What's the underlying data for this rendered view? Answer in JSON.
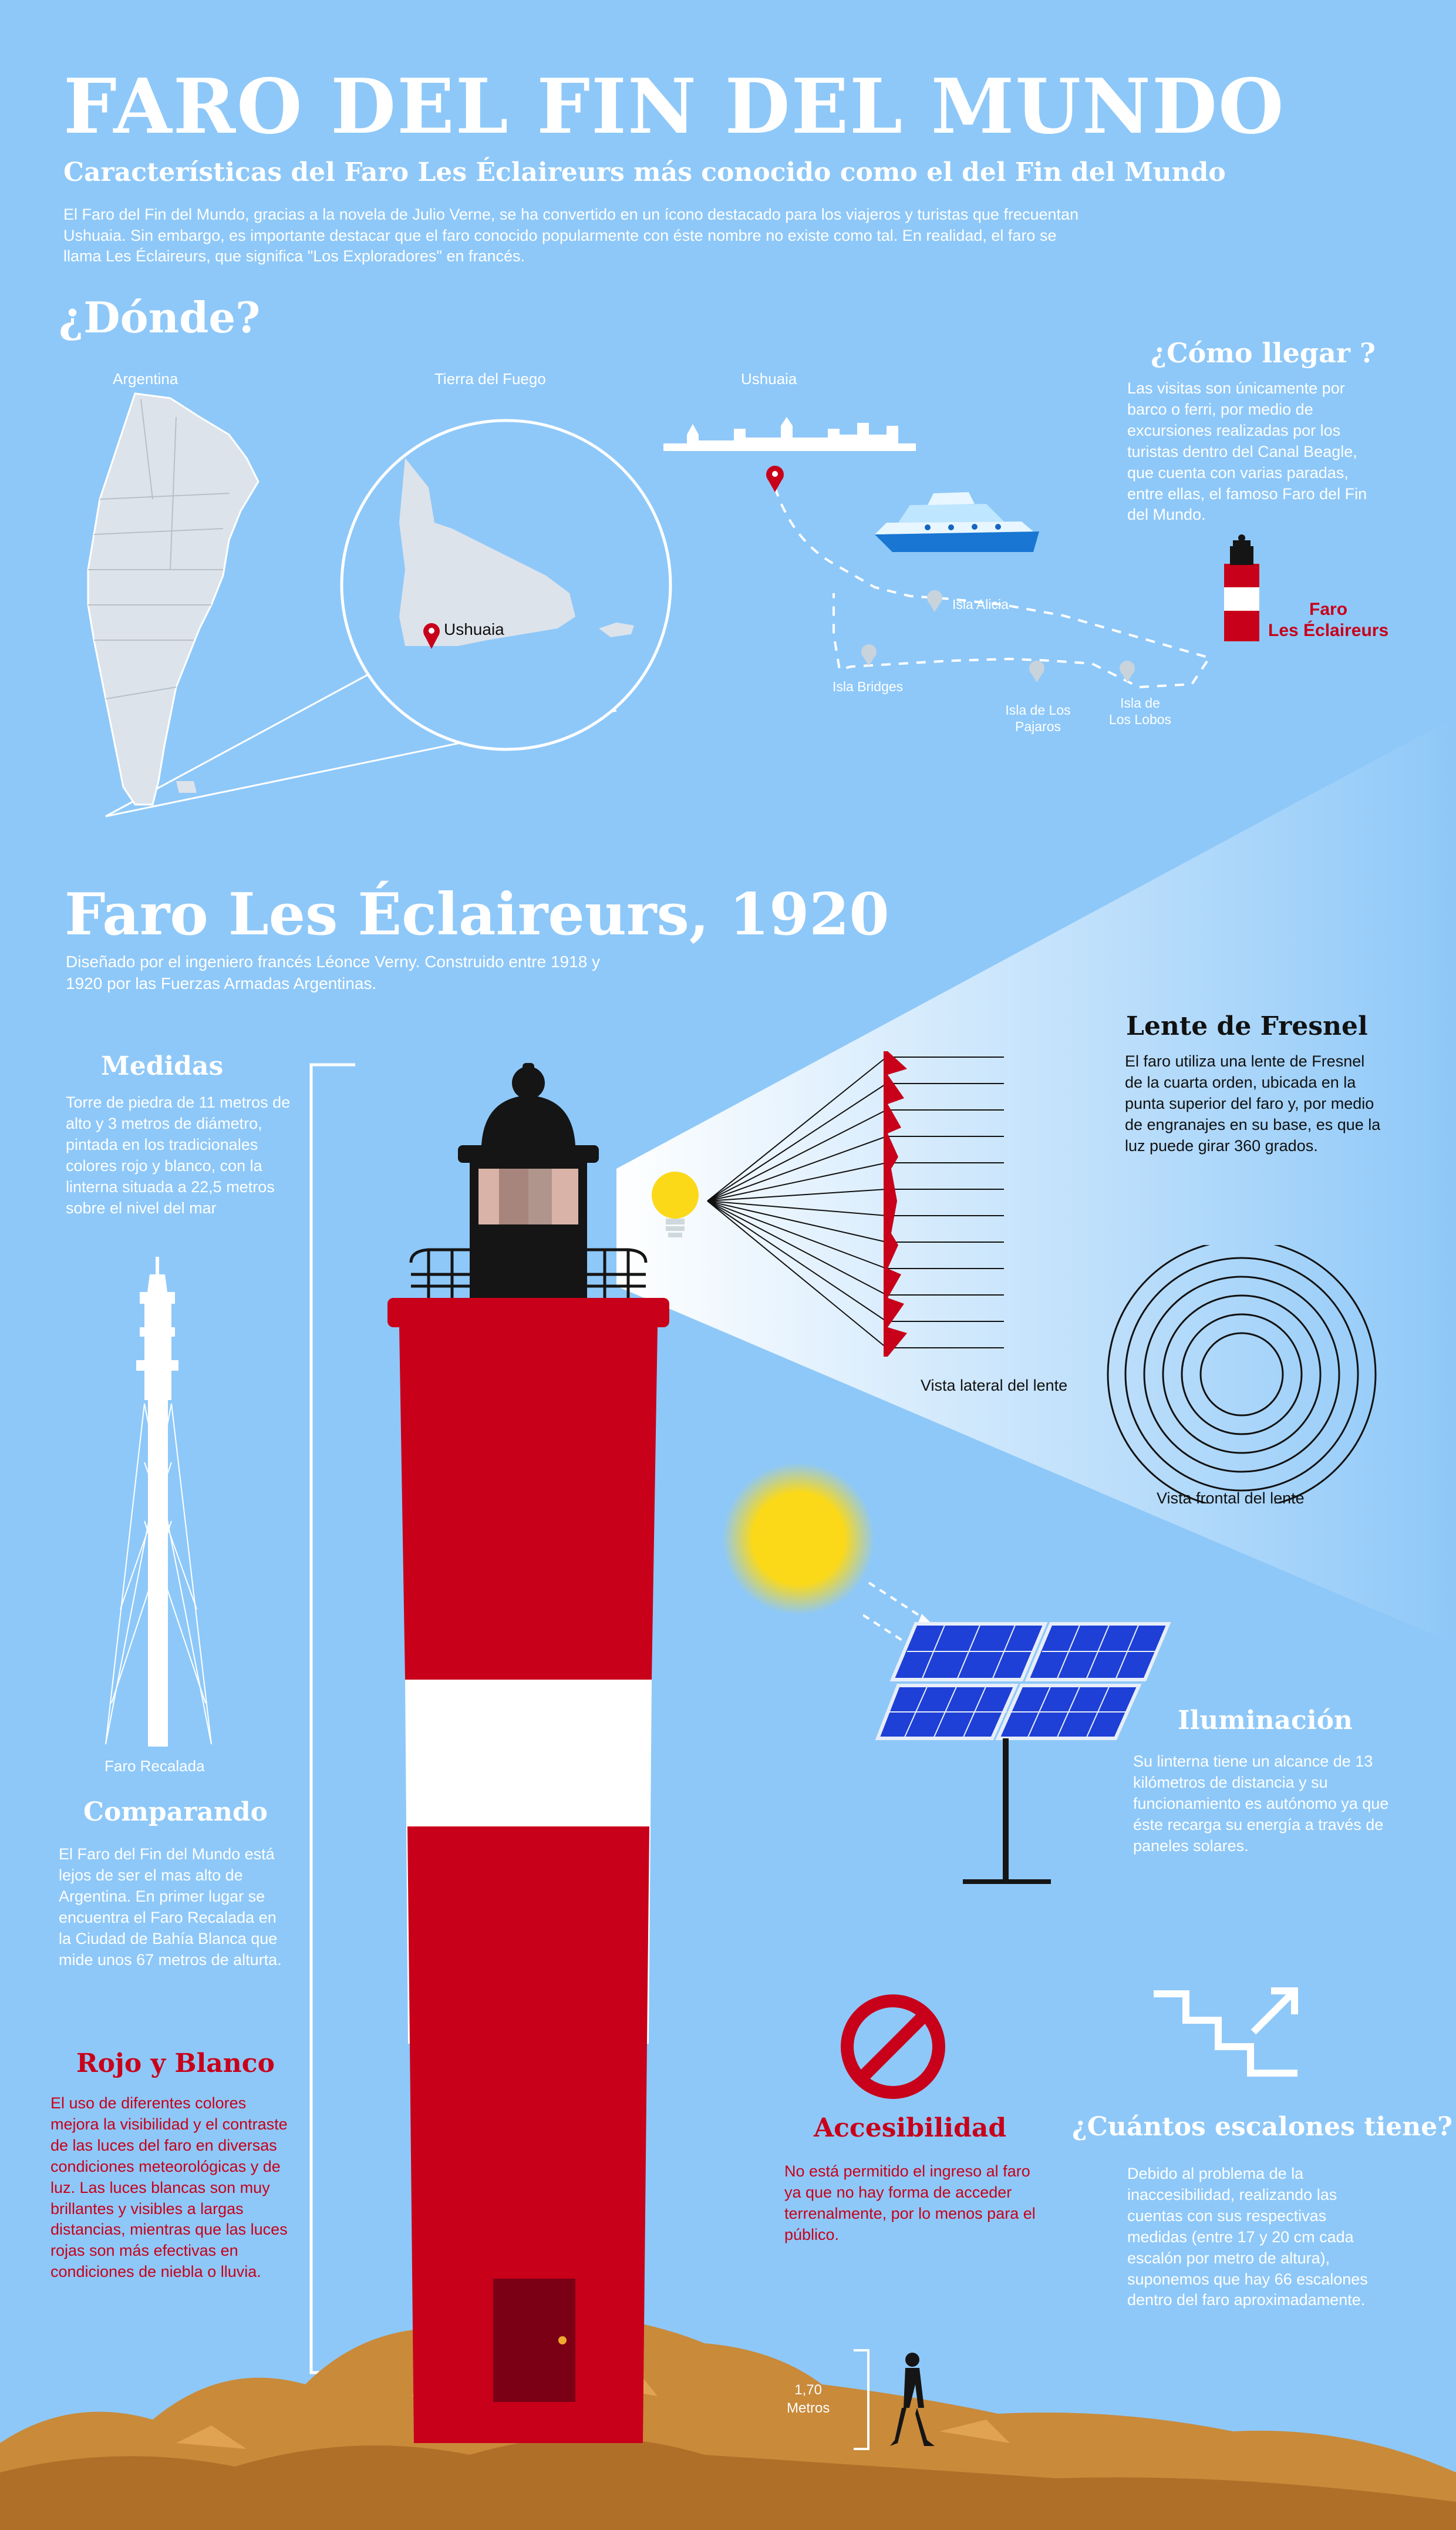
{
  "header": {
    "title": "FARO DEL FIN DEL MUNDO",
    "subtitle": "Características del Faro Les Éclaireurs más conocido como el del Fin del  Mundo",
    "intro": "El Faro del Fin del Mundo, gracias a la novela de Julio Verne, se ha convertido en un ícono destacado para los viajeros y turistas que frecuentan Ushuaia. Sin embargo, es importante destacar que el faro conocido popularmente con éste nombre no existe como tal. En realidad, el faro se llama Les Éclaireurs, que significa \"Los Exploradores\" en francés."
  },
  "donde": {
    "heading": "¿Dónde?",
    "labels": {
      "argentina": "Argentina",
      "tierra_del_fuego": "Tierra del Fuego",
      "ushuaia_top": "Ushuaia",
      "ushuaia_pin": "Ushuaia"
    }
  },
  "como_llegar": {
    "heading": "¿Cómo llegar ?",
    "text": "Las visitas son únicamente por barco o ferri, por medio de excursiones realizadas por los turistas dentro del Canal Beagle, que cuenta con varias paradas, entre ellas, el famoso Faro del Fin del Mundo.",
    "faro_label_1": "Faro",
    "faro_label_2": "Les Éclaireurs",
    "islands": {
      "alicia": "Isla Alicia",
      "bridges": "Isla Bridges",
      "pajaros_1": "Isla de Los",
      "pajaros_2": "Pajaros",
      "lobos_1": "Isla de",
      "lobos_2": "Los Lobos"
    }
  },
  "faro": {
    "heading": "Faro Les  Éclaireurs, 1920",
    "description": "Diseñado por el ingeniero francés Léonce Verny. Construido entre 1918 y 1920 por las Fuerzas Armadas Argentinas."
  },
  "medidas": {
    "heading": "Medidas",
    "text": "Torre de piedra de 11 metros de alto y 3 metros de diámetro, pintada en los tradicionales colores rojo y blanco, con la linterna situada a 22,5 metros sobre el nivel del mar"
  },
  "recalada": {
    "label": "Faro Recalada"
  },
  "comparando": {
    "heading": "Comparando",
    "text": "El Faro del Fin del Mundo está lejos de ser el mas alto de Argentina. En primer lugar se encuentra el Faro Recalada en la Ciudad de Bahía Blanca que mide unos 67 metros de alturta."
  },
  "rojo_blanco": {
    "heading": "Rojo y Blanco",
    "text": "El uso de diferentes colores mejora la visibilidad y el contraste de las luces del faro en diversas condiciones meteorológicas y de luz. Las luces blancas son muy brillantes y visibles a largas distancias, mientras que las luces rojas son más efectivas en condiciones de niebla o lluvia."
  },
  "fresnel": {
    "heading": "Lente de Fresnel",
    "text": "El faro utiliza una lente de Fresnel de la cuarta orden, ubicada en la punta superior del faro y, por medio de engranajes en su base, es que la luz puede girar 360 grados.",
    "lateral": "Vista lateral del lente",
    "frontal": "Vista frontal del lente"
  },
  "iluminacion": {
    "heading": "Iluminación",
    "text": "Su linterna tiene un alcance de 13 kilómetros de distancia y su funcionamiento es autónomo ya que éste recarga su energía a través de paneles solares."
  },
  "accesibilidad": {
    "heading": "Accesibilidad",
    "text": "No está permitido el ingreso al faro ya que no hay forma de acceder terrenalmente, por lo menos para el público."
  },
  "escalones": {
    "heading": "¿Cuántos escalones tiene?",
    "text": "Debido al problema de la inaccesibilidad, realizando las cuentas con sus respectivas medidas (entre 17 y 20 cm cada escalón por metro de altura), suponemos que hay 66 escalones dentro del faro aproximadamente."
  },
  "persona": {
    "height_1": "1,70",
    "height_2": "Metros"
  },
  "colors": {
    "background": "#8ec8f8",
    "red": "#c8001a",
    "dark": "#151515",
    "white": "#ffffff"
  }
}
